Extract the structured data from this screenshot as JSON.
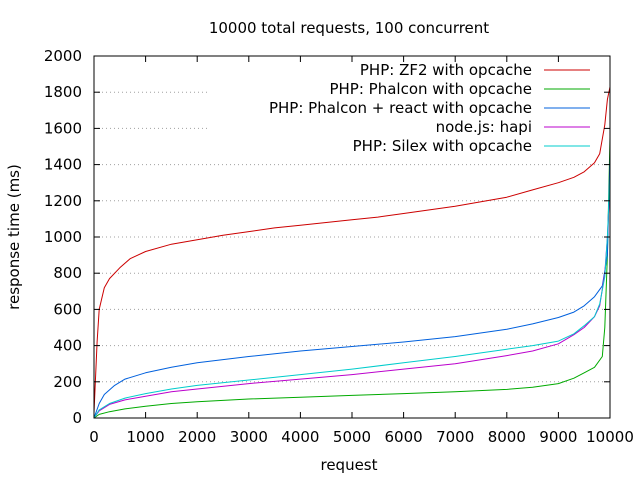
{
  "chart_data": {
    "type": "line",
    "title": "10000 total requests, 100 concurrent",
    "xlabel": "request",
    "ylabel": "response time (ms)",
    "xlim": [
      0,
      10000
    ],
    "ylim": [
      0,
      2000
    ],
    "xticks": [
      0,
      1000,
      2000,
      3000,
      4000,
      5000,
      6000,
      7000,
      8000,
      9000,
      10000
    ],
    "yticks": [
      0,
      200,
      400,
      600,
      800,
      1000,
      1200,
      1400,
      1600,
      1800,
      2000
    ],
    "grid": true,
    "legend_position": "top-right",
    "series": [
      {
        "name": "PHP: ZF2 with opcache",
        "color": "#cc0000",
        "points": [
          [
            0,
            30
          ],
          [
            60,
            420
          ],
          [
            100,
            600
          ],
          [
            200,
            720
          ],
          [
            300,
            770
          ],
          [
            500,
            830
          ],
          [
            700,
            880
          ],
          [
            1000,
            920
          ],
          [
            1500,
            960
          ],
          [
            2000,
            985
          ],
          [
            2500,
            1010
          ],
          [
            3000,
            1030
          ],
          [
            3500,
            1050
          ],
          [
            4000,
            1065
          ],
          [
            4500,
            1080
          ],
          [
            5000,
            1095
          ],
          [
            5500,
            1110
          ],
          [
            6000,
            1130
          ],
          [
            6500,
            1150
          ],
          [
            7000,
            1170
          ],
          [
            7500,
            1195
          ],
          [
            8000,
            1220
          ],
          [
            8500,
            1260
          ],
          [
            9000,
            1300
          ],
          [
            9300,
            1330
          ],
          [
            9500,
            1360
          ],
          [
            9700,
            1410
          ],
          [
            9800,
            1460
          ],
          [
            9900,
            1620
          ],
          [
            9950,
            1760
          ],
          [
            10000,
            1830
          ]
        ]
      },
      {
        "name": "PHP: Phalcon with opcache",
        "color": "#00aa00",
        "points": [
          [
            0,
            0
          ],
          [
            100,
            20
          ],
          [
            300,
            35
          ],
          [
            600,
            50
          ],
          [
            1000,
            65
          ],
          [
            1500,
            80
          ],
          [
            2000,
            90
          ],
          [
            3000,
            105
          ],
          [
            4000,
            115
          ],
          [
            5000,
            125
          ],
          [
            6000,
            135
          ],
          [
            7000,
            145
          ],
          [
            8000,
            158
          ],
          [
            8500,
            170
          ],
          [
            9000,
            190
          ],
          [
            9300,
            220
          ],
          [
            9500,
            250
          ],
          [
            9700,
            280
          ],
          [
            9850,
            340
          ],
          [
            9900,
            500
          ],
          [
            9950,
            900
          ],
          [
            10000,
            1550
          ]
        ]
      },
      {
        "name": "PHP: Phalcon + react with opcache",
        "color": "#0060dd",
        "points": [
          [
            0,
            0
          ],
          [
            100,
            80
          ],
          [
            200,
            130
          ],
          [
            400,
            180
          ],
          [
            600,
            215
          ],
          [
            1000,
            250
          ],
          [
            1500,
            280
          ],
          [
            2000,
            305
          ],
          [
            3000,
            340
          ],
          [
            4000,
            370
          ],
          [
            5000,
            395
          ],
          [
            6000,
            420
          ],
          [
            7000,
            450
          ],
          [
            8000,
            490
          ],
          [
            8500,
            520
          ],
          [
            9000,
            555
          ],
          [
            9300,
            585
          ],
          [
            9500,
            620
          ],
          [
            9700,
            670
          ],
          [
            9850,
            730
          ],
          [
            9950,
            900
          ],
          [
            10000,
            1450
          ]
        ]
      },
      {
        "name": "node.js: hapi",
        "color": "#bb00cc",
        "points": [
          [
            0,
            0
          ],
          [
            100,
            40
          ],
          [
            300,
            75
          ],
          [
            600,
            100
          ],
          [
            1000,
            120
          ],
          [
            1500,
            145
          ],
          [
            2000,
            160
          ],
          [
            3000,
            190
          ],
          [
            4000,
            215
          ],
          [
            5000,
            240
          ],
          [
            6000,
            270
          ],
          [
            7000,
            300
          ],
          [
            8000,
            345
          ],
          [
            8500,
            370
          ],
          [
            9000,
            410
          ],
          [
            9300,
            460
          ],
          [
            9500,
            500
          ],
          [
            9700,
            560
          ],
          [
            9800,
            620
          ],
          [
            9900,
            800
          ],
          [
            9950,
            1000
          ],
          [
            10000,
            1300
          ]
        ]
      },
      {
        "name": "PHP: Silex with opcache",
        "color": "#00cccc",
        "points": [
          [
            0,
            0
          ],
          [
            100,
            45
          ],
          [
            300,
            80
          ],
          [
            600,
            110
          ],
          [
            1000,
            135
          ],
          [
            1500,
            160
          ],
          [
            2000,
            180
          ],
          [
            3000,
            210
          ],
          [
            4000,
            240
          ],
          [
            5000,
            270
          ],
          [
            6000,
            305
          ],
          [
            7000,
            340
          ],
          [
            8000,
            380
          ],
          [
            8500,
            400
          ],
          [
            9000,
            425
          ],
          [
            9300,
            465
          ],
          [
            9500,
            510
          ],
          [
            9700,
            560
          ],
          [
            9800,
            630
          ],
          [
            9900,
            780
          ],
          [
            9950,
            1000
          ],
          [
            10000,
            1350
          ]
        ]
      }
    ]
  }
}
